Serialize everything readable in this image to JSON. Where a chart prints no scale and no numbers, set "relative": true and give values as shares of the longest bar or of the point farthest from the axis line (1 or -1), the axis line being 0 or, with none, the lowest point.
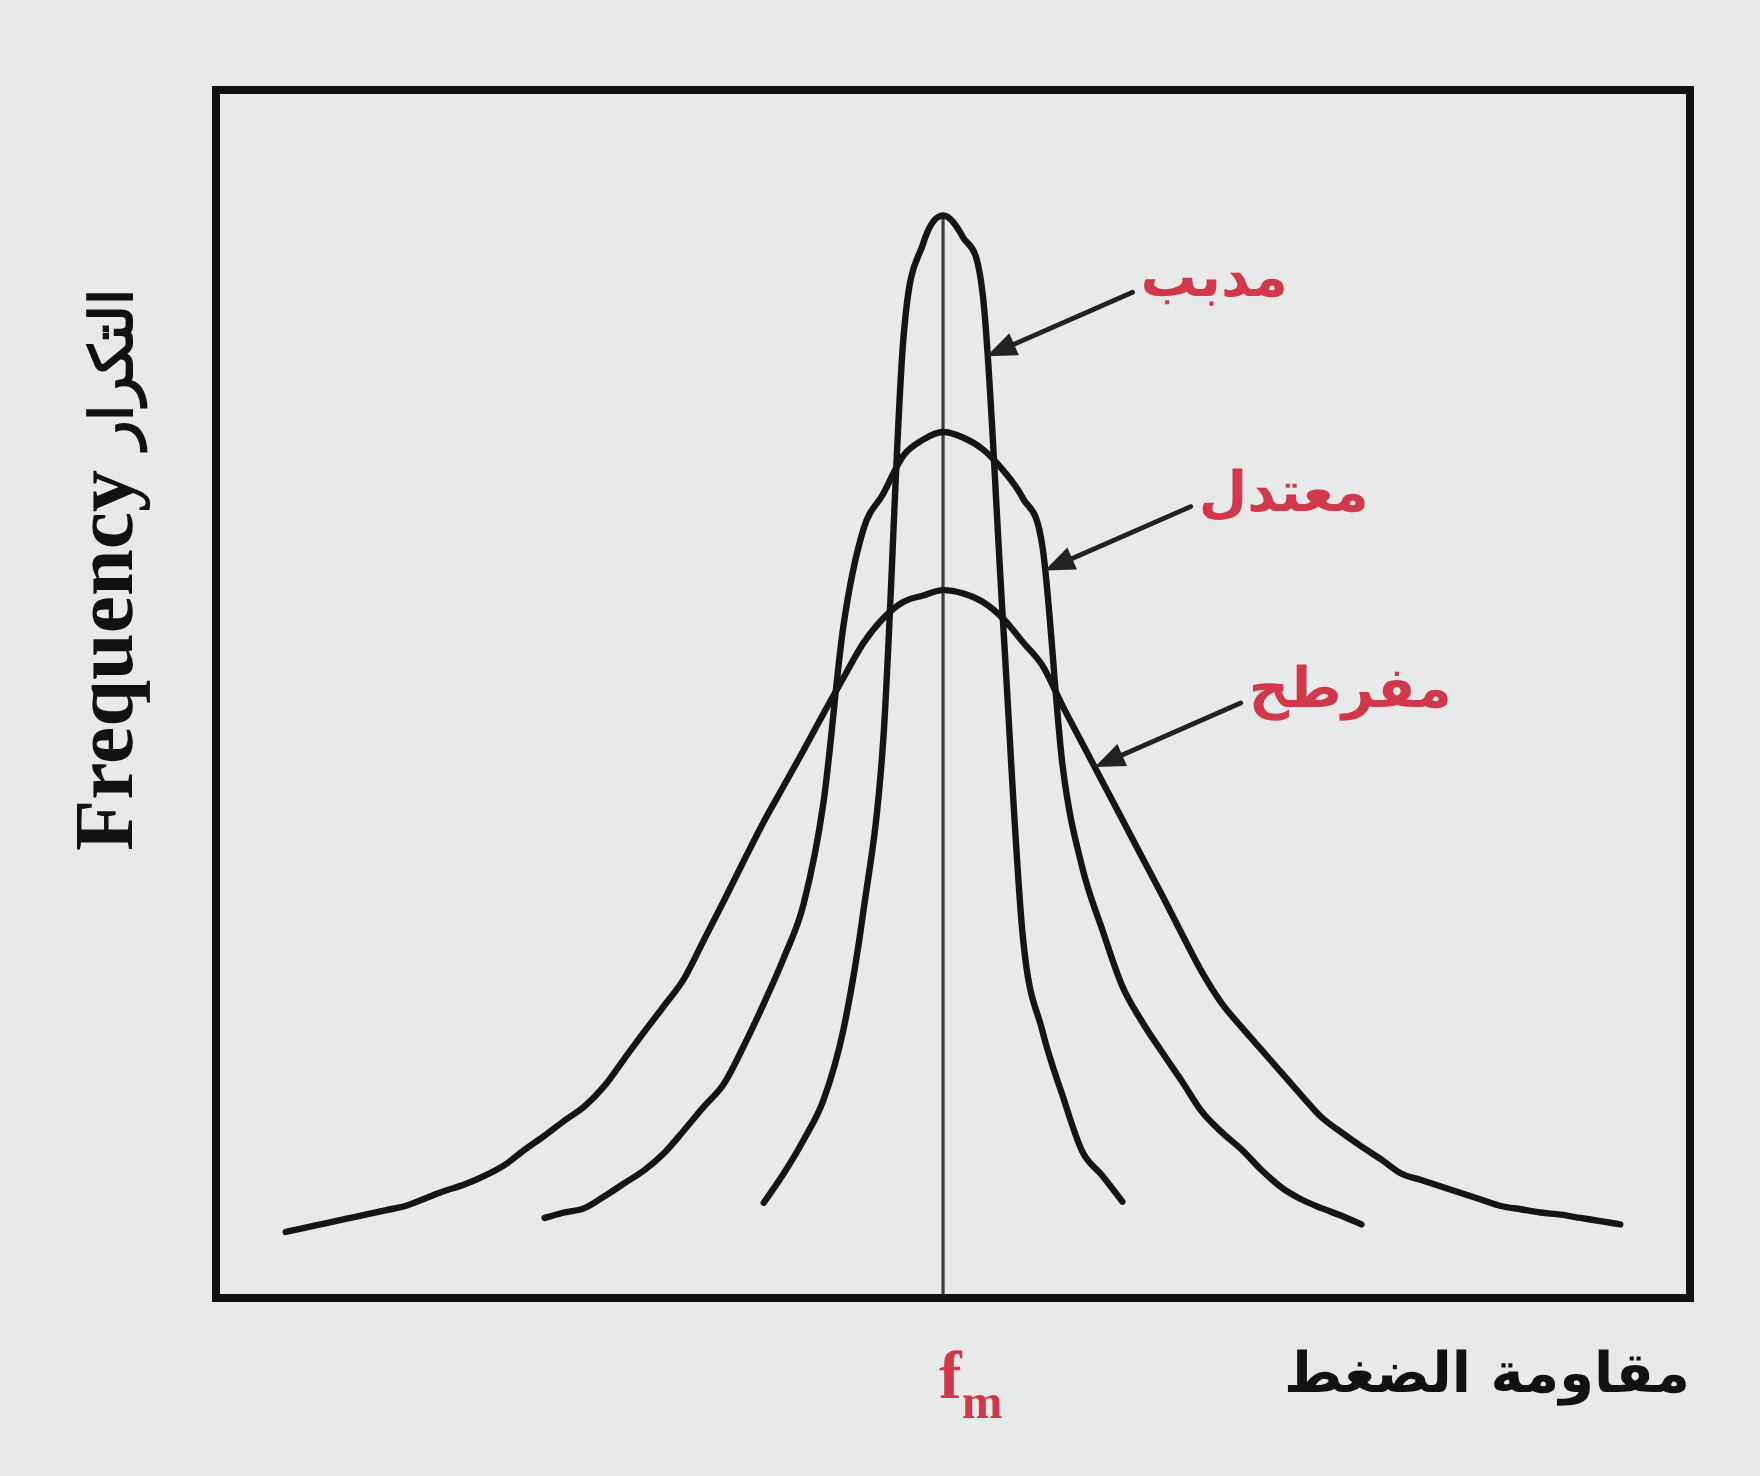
{
  "chart_data": {
    "type": "line",
    "relative": true,
    "line_style": "solid",
    "xlabel": "مقاومة الضغط",
    "ylabel": "Frequency التكرار",
    "annotations": [
      "f$_{m}$"
    ],
    "categories": [
      null,
      null,
      null,
      null,
      null,
      null,
      null,
      null,
      null,
      null,
      null,
      null,
      null,
      null,
      null,
      null,
      null,
      null,
      null,
      null,
      null,
      null,
      null,
      null,
      null,
      null,
      null,
      null,
      null,
      null,
      null,
      null,
      null,
      null,
      null,
      null,
      null,
      null,
      null,
      null,
      null,
      null,
      null,
      null,
      null,
      null,
      null,
      null,
      null,
      null,
      null,
      null,
      null,
      null,
      null,
      null,
      null,
      null,
      null,
      null,
      null,
      null,
      null,
      null,
      null,
      null,
      null,
      null,
      null,
      null,
      null,
      null,
      null,
      null
    ],
    "series": [
      {
        "name": "مدبب",
        "color": "#151515",
        "values": [
          null,
          null,
          null,
          null,
          null,
          null,
          null,
          null,
          null,
          null,
          null,
          null,
          null,
          null,
          null,
          null,
          null,
          null,
          null,
          null,
          null,
          null,
          null,
          null,
          null,
          null,
          null,
          0.088,
          0.115,
          0.146,
          0.183,
          0.248,
          0.357,
          0.516,
          0.884,
          0.974,
          1,
          0.98,
          0.926,
          0.628,
          0.335,
          0.246,
          0.187,
          0.135,
          0.113,
          0.089,
          null,
          null,
          null,
          null,
          null,
          null,
          null,
          null,
          null,
          null,
          null,
          null,
          null,
          null,
          null,
          null,
          null,
          null,
          null,
          null,
          null,
          null,
          null,
          null,
          null,
          null,
          null,
          null
        ]
      },
      {
        "name": "معتدل",
        "color": "#151515",
        "values": [
          null,
          null,
          null,
          null,
          null,
          null,
          null,
          null,
          null,
          null,
          null,
          null,
          null,
          null,
          null,
          null,
          0.074,
          0.079,
          0.083,
          0.094,
          0.106,
          0.118,
          0.134,
          0.155,
          0.177,
          0.198,
          0.233,
          0.272,
          0.314,
          0.364,
          0.458,
          0.621,
          0.71,
          0.743,
          0.778,
          0.793,
          0.8,
          0.795,
          0.784,
          0.765,
          0.739,
          0.693,
          0.492,
          0.397,
          0.34,
          0.288,
          0.255,
          0.227,
          0.2,
          0.172,
          0.153,
          0.137,
          0.118,
          0.102,
          0.091,
          0.083,
          0.076,
          0.068,
          null,
          null,
          null,
          null,
          null,
          null,
          null,
          null,
          null,
          null,
          null,
          null,
          null,
          null,
          null,
          null
        ]
      },
      {
        "name": "مفرطح",
        "color": "#151515",
        "values": [
          null,
          null,
          null,
          0.061,
          0.065,
          0.069,
          0.073,
          0.077,
          0.081,
          0.085,
          0.092,
          0.099,
          0.105,
          0.113,
          0.123,
          0.137,
          0.15,
          0.164,
          0.177,
          0.196,
          0.221,
          0.246,
          0.27,
          0.295,
          0.331,
          0.367,
          0.404,
          0.44,
          0.473,
          0.506,
          0.54,
          0.573,
          0.605,
          0.628,
          0.643,
          0.649,
          0.654,
          0.651,
          0.643,
          0.628,
          0.606,
          0.584,
          0.547,
          0.512,
          0.477,
          0.442,
          0.407,
          0.372,
          0.336,
          0.301,
          0.272,
          0.25,
          0.229,
          0.208,
          0.187,
          0.167,
          0.153,
          0.14,
          0.128,
          0.115,
          0.109,
          0.103,
          0.097,
          0.091,
          0.085,
          0.082,
          0.079,
          0.077,
          0.074,
          0.071,
          0.068,
          null,
          null,
          null
        ]
      }
    ]
  }
}
